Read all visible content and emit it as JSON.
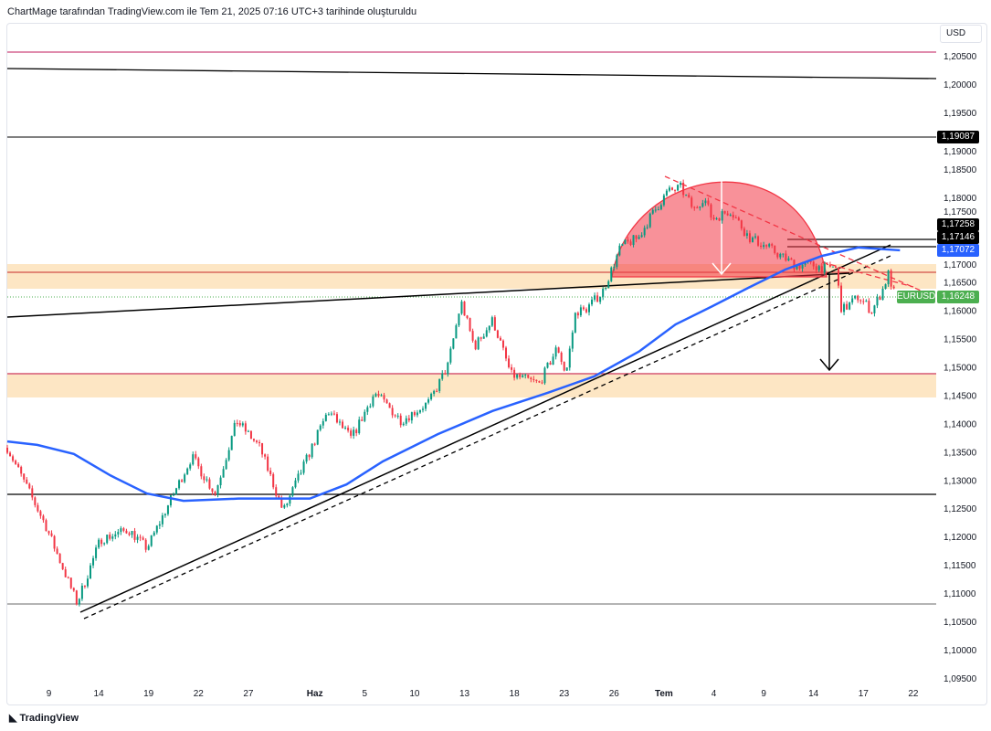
{
  "header": {
    "caption": "ChartMage tarafından TradingView.com ile Tem 21, 2025 07:16 UTC+3 tarihinde oluşturuldu"
  },
  "currency": "USD",
  "brand": "TradingView",
  "price_tags": {
    "level_black": "1,19087",
    "high1": "1,17258",
    "high2": "1,17146",
    "ma": "1,17072",
    "symbol": "EURUSD",
    "last": "1,16248"
  },
  "colors": {
    "up": "#089981",
    "down": "#f23645",
    "ma": "#2962ff",
    "zone": "#fde6c4",
    "last": "#4caf50"
  },
  "chart_data": {
    "type": "candlestick",
    "symbol": "EURUSD",
    "timeframe_note": "x in trading-day offset from first bar",
    "ylim": [
      1.0925,
      1.2085
    ],
    "y_ticks": [
      "1,20500",
      "1,20000",
      "1,19500",
      "1,19000",
      "1,18500",
      "1,18000",
      "1,17500",
      "1,17000",
      "1,16500",
      "1,16000",
      "1,15500",
      "1,15000",
      "1,14500",
      "1,14000",
      "1,13500",
      "1,13000",
      "1,12500",
      "1,12000",
      "1,11500",
      "1,11000",
      "1,10500",
      "1,10000",
      "1,09500"
    ],
    "y_tick_values": [
      1.205,
      1.2,
      1.195,
      1.19,
      1.185,
      1.18,
      1.175,
      1.17,
      1.165,
      1.16,
      1.155,
      1.15,
      1.145,
      1.14,
      1.135,
      1.13,
      1.125,
      1.12,
      1.115,
      1.11,
      1.105,
      1.1,
      1.095
    ],
    "x_ticks": [
      {
        "t": 2.5,
        "label": "9"
      },
      {
        "t": 5.5,
        "label": "14"
      },
      {
        "t": 8.5,
        "label": "19"
      },
      {
        "t": 11.5,
        "label": "22"
      },
      {
        "t": 14.5,
        "label": "27"
      },
      {
        "t": 18.5,
        "label": "Haz"
      },
      {
        "t": 21.5,
        "label": "5"
      },
      {
        "t": 24.5,
        "label": "10"
      },
      {
        "t": 27.5,
        "label": "13"
      },
      {
        "t": 30.5,
        "label": "18"
      },
      {
        "t": 33.5,
        "label": "23"
      },
      {
        "t": 36.5,
        "label": "26"
      },
      {
        "t": 39.5,
        "label": "Tem"
      },
      {
        "t": 42.5,
        "label": "4"
      },
      {
        "t": 45.5,
        "label": "9"
      },
      {
        "t": 48.5,
        "label": "14"
      },
      {
        "t": 51.5,
        "label": "17"
      },
      {
        "t": 54.5,
        "label": "22"
      }
    ],
    "close_path": [
      [
        0,
        1.1357
      ],
      [
        2.3,
        1.122
      ],
      [
        4.2,
        1.1082
      ],
      [
        5.6,
        1.1195
      ],
      [
        7.3,
        1.1212
      ],
      [
        8.4,
        1.1179
      ],
      [
        11.1,
        1.1341
      ],
      [
        12.5,
        1.1276
      ],
      [
        13.8,
        1.1405
      ],
      [
        15.2,
        1.1357
      ],
      [
        16.6,
        1.1244
      ],
      [
        19.3,
        1.1422
      ],
      [
        20.7,
        1.1373
      ],
      [
        22.1,
        1.1454
      ],
      [
        23.7,
        1.1405
      ],
      [
        25.4,
        1.1438
      ],
      [
        26.5,
        1.1502
      ],
      [
        27.3,
        1.1615
      ],
      [
        28.1,
        1.1535
      ],
      [
        29.2,
        1.1583
      ],
      [
        30.3,
        1.1486
      ],
      [
        32.0,
        1.147
      ],
      [
        33.1,
        1.1535
      ],
      [
        33.6,
        1.1486
      ],
      [
        34.2,
        1.1599
      ],
      [
        34.7,
        1.1599
      ],
      [
        35.8,
        1.1632
      ],
      [
        36.9,
        1.1712
      ],
      [
        38.0,
        1.1729
      ],
      [
        38.6,
        1.1761
      ],
      [
        39.7,
        1.1809
      ],
      [
        40.5,
        1.1817
      ],
      [
        41.3,
        1.1777
      ],
      [
        41.9,
        1.1801
      ],
      [
        42.4,
        1.1761
      ],
      [
        43.5,
        1.1777
      ],
      [
        44.6,
        1.1729
      ],
      [
        45.7,
        1.1712
      ],
      [
        47.4,
        1.168
      ],
      [
        48.5,
        1.168
      ],
      [
        49.3,
        1.1672
      ],
      [
        49.8,
        1.168
      ],
      [
        50.2,
        1.1599
      ],
      [
        51.2,
        1.1624
      ],
      [
        52.0,
        1.1599
      ],
      [
        52.6,
        1.1632
      ],
      [
        53.0,
        1.1664
      ],
      [
        53.4,
        1.1625
      ]
    ],
    "moving_average": [
      [
        0,
        1.1368
      ],
      [
        1.8,
        1.1362
      ],
      [
        4,
        1.1346
      ],
      [
        6.2,
        1.1308
      ],
      [
        8.4,
        1.1276
      ],
      [
        10.6,
        1.1263
      ],
      [
        13.9,
        1.1267
      ],
      [
        16,
        1.1267
      ],
      [
        18.2,
        1.1267
      ],
      [
        20.4,
        1.1292
      ],
      [
        22.6,
        1.1333
      ],
      [
        25.9,
        1.1381
      ],
      [
        29.2,
        1.1422
      ],
      [
        32.5,
        1.1454
      ],
      [
        35.3,
        1.1483
      ],
      [
        38,
        1.1527
      ],
      [
        40.2,
        1.1575
      ],
      [
        42.4,
        1.1607
      ],
      [
        44.6,
        1.164
      ],
      [
        46.8,
        1.1672
      ],
      [
        49,
        1.1696
      ],
      [
        51.2,
        1.1711
      ],
      [
        53.7,
        1.1706
      ]
    ]
  }
}
